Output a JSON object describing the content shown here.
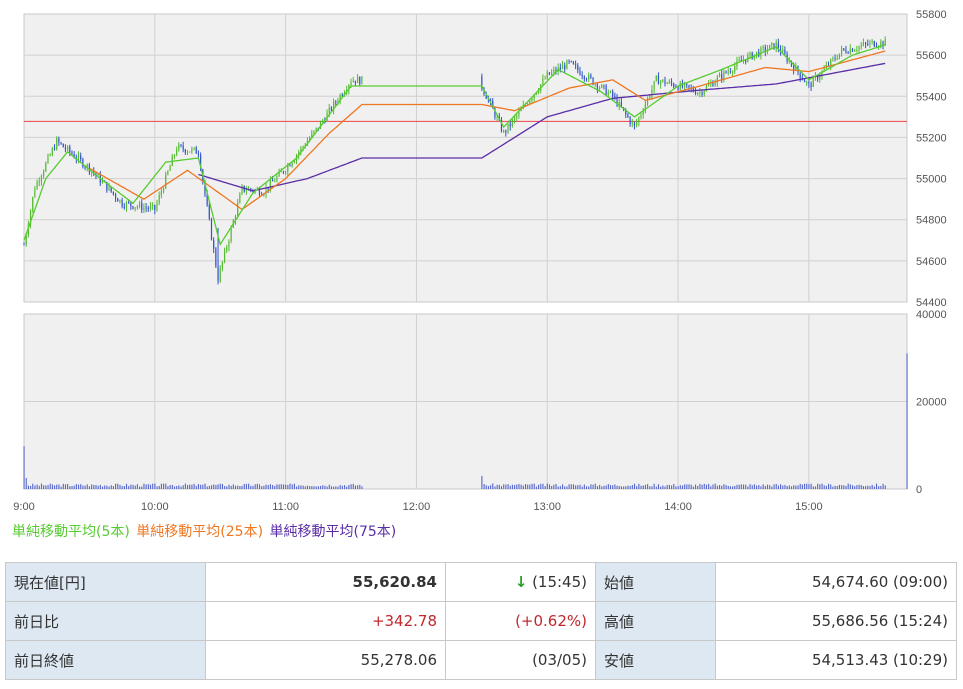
{
  "chart_data": [
    {
      "type": "line",
      "panel": "price",
      "x_ticks": [
        "9:00",
        "10:00",
        "11:00",
        "12:00",
        "13:00",
        "14:00",
        "15:00"
      ],
      "y_ticks": [
        "55800",
        "55600",
        "55400",
        "55200",
        "55000",
        "54800",
        "54600",
        "54400"
      ],
      "ylim": [
        54400,
        55800
      ],
      "reference_line": 55278.06,
      "grid": true,
      "series": [
        {
          "name": "単純移動平均(5本)",
          "color": "#55cc2f"
        },
        {
          "name": "単純移動平均(25本)",
          "color": "#ee7722"
        },
        {
          "name": "単純移動平均(75本)",
          "color": "#5a2da8"
        }
      ],
      "ohlc_key_points": [
        [
          "9:00",
          54680
        ],
        [
          "9:05",
          54960
        ],
        [
          "9:15",
          55180
        ],
        [
          "9:30",
          55050
        ],
        [
          "9:45",
          54880
        ],
        [
          "10:00",
          54850
        ],
        [
          "10:10",
          55150
        ],
        [
          "10:20",
          55130
        ],
        [
          "10:29",
          54513
        ],
        [
          "10:40",
          54950
        ],
        [
          "10:50",
          54940
        ],
        [
          "11:00",
          55050
        ],
        [
          "11:15",
          55250
        ],
        [
          "11:30",
          55480
        ],
        [
          "12:30",
          55450
        ],
        [
          "12:40",
          55220
        ],
        [
          "13:00",
          55500
        ],
        [
          "13:10",
          55560
        ],
        [
          "13:30",
          55400
        ],
        [
          "13:40",
          55250
        ],
        [
          "13:50",
          55480
        ],
        [
          "14:10",
          55420
        ],
        [
          "14:30",
          55580
        ],
        [
          "14:45",
          55650
        ],
        [
          "15:00",
          55450
        ],
        [
          "15:15",
          55620
        ],
        [
          "15:30",
          55660
        ]
      ],
      "sma5": [
        [
          "9:00",
          54700
        ],
        [
          "9:10",
          55000
        ],
        [
          "9:20",
          55130
        ],
        [
          "9:35",
          55000
        ],
        [
          "9:50",
          54880
        ],
        [
          "10:05",
          55080
        ],
        [
          "10:20",
          55100
        ],
        [
          "10:30",
          54680
        ],
        [
          "10:45",
          54930
        ],
        [
          "11:05",
          55100
        ],
        [
          "11:30",
          55450
        ],
        [
          "12:30",
          55450
        ],
        [
          "12:40",
          55250
        ],
        [
          "13:05",
          55530
        ],
        [
          "13:25",
          55420
        ],
        [
          "13:40",
          55300
        ],
        [
          "14:00",
          55450
        ],
        [
          "14:20",
          55530
        ],
        [
          "14:45",
          55640
        ],
        [
          "15:00",
          55480
        ],
        [
          "15:20",
          55600
        ],
        [
          "15:35",
          55650
        ]
      ],
      "sma25": [
        [
          "9:30",
          55050
        ],
        [
          "9:55",
          54900
        ],
        [
          "10:15",
          55040
        ],
        [
          "10:40",
          54850
        ],
        [
          "11:00",
          55000
        ],
        [
          "11:20",
          55220
        ],
        [
          "11:35",
          55360
        ],
        [
          "12:30",
          55360
        ],
        [
          "12:45",
          55330
        ],
        [
          "13:10",
          55440
        ],
        [
          "13:30",
          55480
        ],
        [
          "13:45",
          55380
        ],
        [
          "14:10",
          55450
        ],
        [
          "14:40",
          55540
        ],
        [
          "15:00",
          55520
        ],
        [
          "15:35",
          55620
        ]
      ],
      "sma75": [
        [
          "10:20",
          55020
        ],
        [
          "10:45",
          54940
        ],
        [
          "11:10",
          55000
        ],
        [
          "11:35",
          55100
        ],
        [
          "12:30",
          55100
        ],
        [
          "13:00",
          55300
        ],
        [
          "13:30",
          55390
        ],
        [
          "14:10",
          55430
        ],
        [
          "14:45",
          55460
        ],
        [
          "15:35",
          55560
        ]
      ]
    },
    {
      "type": "bar",
      "panel": "volume",
      "y_ticks": [
        "40000",
        "20000",
        "0"
      ],
      "ylim": [
        0,
        40000
      ],
      "volume_key_points": [
        [
          "9:00",
          9800
        ],
        [
          "9:01",
          2500
        ],
        [
          "12:30",
          3000
        ],
        [
          "15:45",
          31000
        ]
      ],
      "typical_volume": 900
    }
  ],
  "legend": {
    "sma5": "単純移動平均(5本)",
    "sma25": "単純移動平均(25本)",
    "sma75": "単純移動平均(75本)"
  },
  "quote_table": {
    "current_label": "現在値[円]",
    "current_value": "55,620.84",
    "current_arrow": "↓",
    "current_time": "(15:45)",
    "open_label": "始値",
    "open_value": "54,674.60 (09:00)",
    "change_label": "前日比",
    "change_value": "+342.78",
    "change_pct": "(+0.62%)",
    "high_label": "高値",
    "high_value": "55,686.56 (15:24)",
    "prev_close_label": "前日終値",
    "prev_close_value": "55,278.06",
    "prev_close_date": "(03/05)",
    "low_label": "安値",
    "low_value": "54,513.43 (10:29)"
  },
  "colors": {
    "sma5": "#55cc2f",
    "sma25": "#ee7722",
    "sma75": "#5a2da8",
    "candle_up": "#55bb33",
    "candle_down": "#3355cc",
    "reference": "#ee4444",
    "volume": "#5566cc",
    "panel_bg": "#f0f0f0",
    "up_text": "#c0282d",
    "arrow": "#2a9d2a"
  }
}
